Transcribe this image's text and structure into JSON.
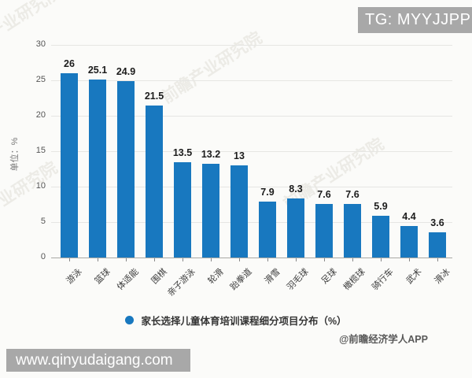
{
  "watermark_box": {
    "text": "TG: MYYJJPP",
    "bg_color": "#a8a8a8"
  },
  "footer_bar": {
    "text": "www.qinyudaigang.com",
    "bg_color": "#a8a8a8"
  },
  "attribution": "@前瞻经济学人APP",
  "background_watermark": "前瞻产业研究院",
  "chart_data": {
    "type": "bar",
    "title": "",
    "ylabel": "单位：%",
    "xlabel": "",
    "categories": [
      "游泳",
      "篮球",
      "体适能",
      "围棋",
      "亲子游泳",
      "轮滑",
      "跆拳道",
      "滑雪",
      "羽毛球",
      "足球",
      "橄榄球",
      "骑行车",
      "武术",
      "滑冰"
    ],
    "values": [
      26,
      25.1,
      24.9,
      21.5,
      13.5,
      13.2,
      13,
      7.9,
      8.3,
      7.6,
      7.6,
      5.9,
      4.4,
      3.6
    ],
    "ylim": [
      0,
      30
    ],
    "yticks": [
      0,
      5,
      10,
      15,
      20,
      25,
      30
    ],
    "grid": true,
    "bar_color": "#1878bf",
    "legend": {
      "label": "家长选择儿童体育培训课程细分项目分布（%）",
      "position": "bottom",
      "marker": "circle"
    }
  }
}
